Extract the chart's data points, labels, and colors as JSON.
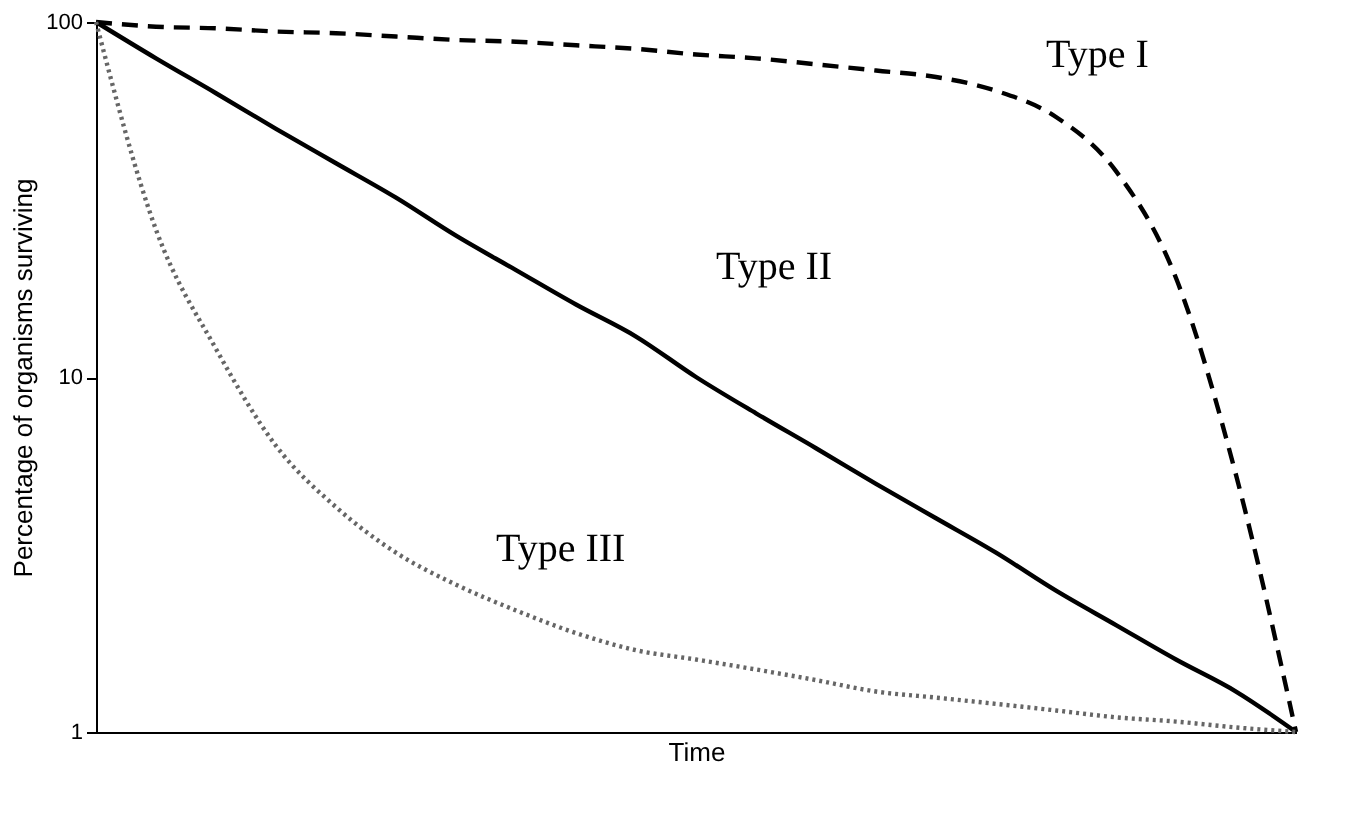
{
  "chart_data": {
    "type": "line",
    "xlabel": "Time",
    "ylabel": "Percentage of organisms surviving",
    "categories": [
      null,
      null,
      null,
      null,
      null,
      null,
      null,
      null,
      null,
      null,
      null,
      null,
      null,
      null,
      null,
      null,
      null,
      null,
      null,
      null,
      null
    ],
    "series": [
      {
        "name": "Type I",
        "color": "#000000",
        "line_style": "dashed",
        "values": [
          100,
          97,
          96,
          94,
          93,
          91,
          89,
          88,
          86,
          84,
          81,
          79,
          76,
          73,
          70,
          64,
          54,
          38,
          19,
          5.3,
          1
        ]
      },
      {
        "name": "Type II",
        "color": "#000000",
        "line_style": "solid",
        "values": [
          100,
          79,
          63,
          50,
          40,
          32,
          25,
          20,
          16,
          13,
          10,
          7.9,
          6.3,
          5,
          4,
          3.2,
          2.5,
          2,
          1.6,
          1.3,
          1
        ]
      },
      {
        "name": "Type III",
        "color": "#666666",
        "line_style": "dotted",
        "values": [
          100,
          26,
          12,
          6.4,
          4.3,
          3.2,
          2.6,
          2.2,
          1.9,
          1.7,
          1.6,
          1.5,
          1.4,
          1.3,
          1.25,
          1.2,
          1.15,
          1.1,
          1.07,
          1.03,
          1
        ]
      }
    ],
    "log": "y",
    "ylim": [
      1,
      100
    ],
    "yticks": [
      1,
      10,
      100
    ],
    "grid": false,
    "tick_labels": "y",
    "marker": "none"
  }
}
